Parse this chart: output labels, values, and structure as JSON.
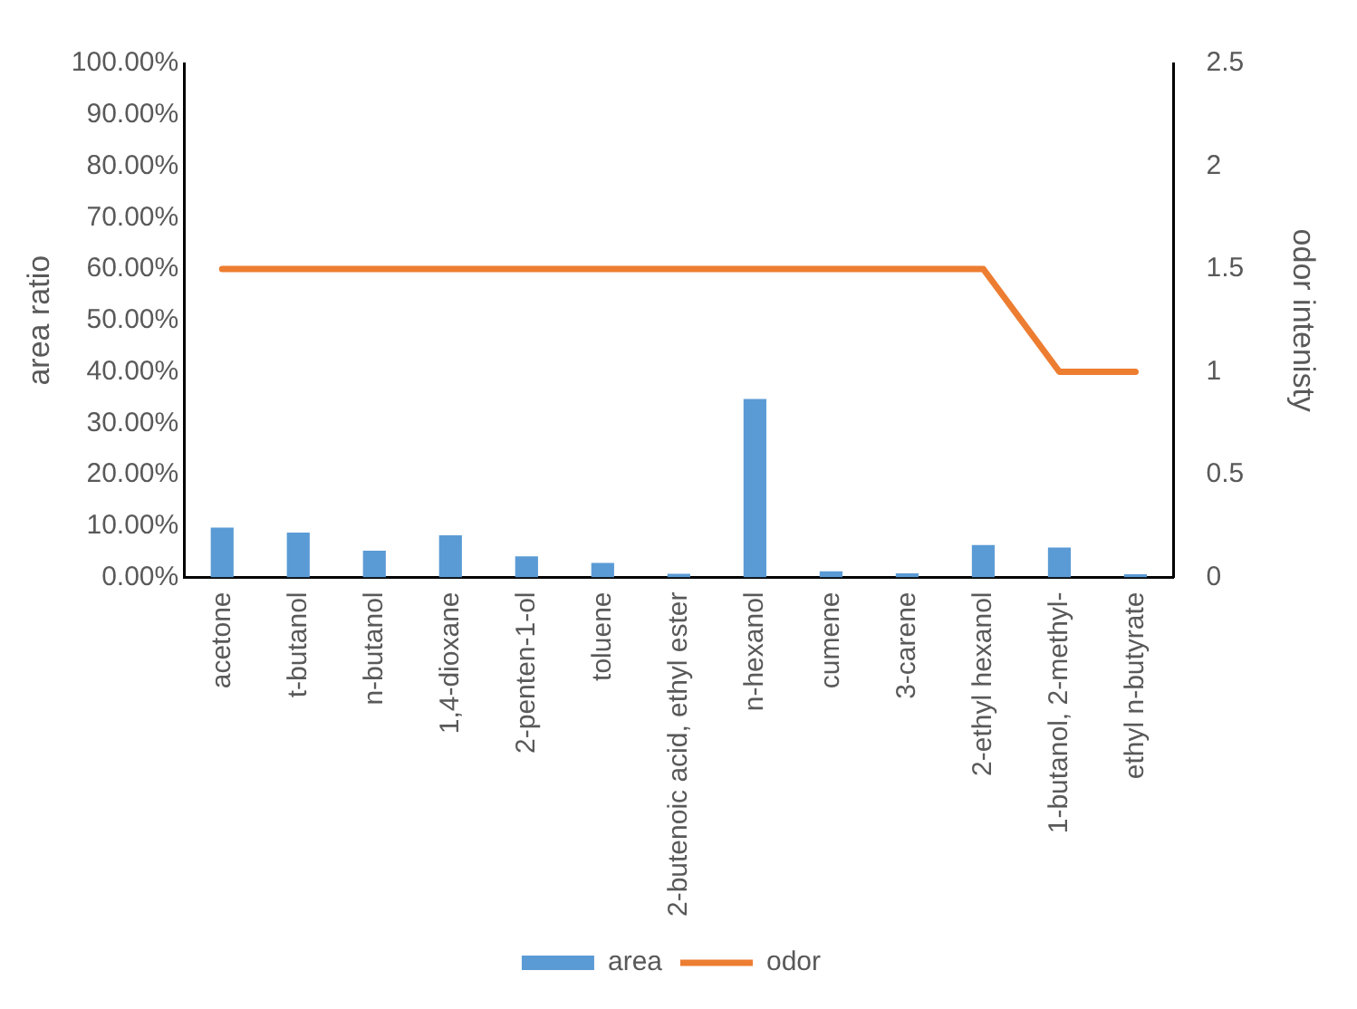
{
  "chart_data": {
    "type": "bar",
    "ylabel": "area ratio",
    "y2label": "odor intenisty",
    "categories": [
      "acetone",
      "t-butanol",
      "n-butanol",
      "1,4-dioxane",
      "2-penten-1-ol",
      "toluene",
      "2-butenoic acid, ethyl ester",
      "n-hexanol",
      "cumene",
      "3-carene",
      "2-ethyl hexanol",
      "1-butanol, 2-methyl-",
      "ethyl n-butyrate"
    ],
    "series": [
      {
        "name": "area",
        "color": "#5b9bd5",
        "values": [
          0.097,
          0.087,
          0.052,
          0.082,
          0.041,
          0.028,
          0.007,
          0.347,
          0.012,
          0.008,
          0.063,
          0.058,
          0.006
        ]
      },
      {
        "name": "odor",
        "type": "line",
        "axis": "y2",
        "color": "#ed7d31",
        "marker": "none",
        "values": [
          1.5,
          1.5,
          1.5,
          1.5,
          1.5,
          1.5,
          1.5,
          1.5,
          1.5,
          1.5,
          1.5,
          1,
          1
        ]
      }
    ],
    "ylim": [
      0,
      1
    ],
    "yticks": [
      {
        "value": 0,
        "label": "0.00%"
      },
      {
        "value": 0.1,
        "label": "10.00%"
      },
      {
        "value": 0.2,
        "label": "20.00%"
      },
      {
        "value": 0.3,
        "label": "30.00%"
      },
      {
        "value": 0.4,
        "label": "40.00%"
      },
      {
        "value": 0.5,
        "label": "50.00%"
      },
      {
        "value": 0.6,
        "label": "60.00%"
      },
      {
        "value": 0.7,
        "label": "70.00%"
      },
      {
        "value": 0.8,
        "label": "80.00%"
      },
      {
        "value": 0.9,
        "label": "90.00%"
      },
      {
        "value": 1,
        "label": "100.00%"
      }
    ],
    "y2lim": [
      0,
      2.5
    ],
    "y2ticks": [
      0,
      0.5,
      1,
      1.5,
      2,
      2.5
    ],
    "grid": false,
    "legend": "bottom"
  }
}
